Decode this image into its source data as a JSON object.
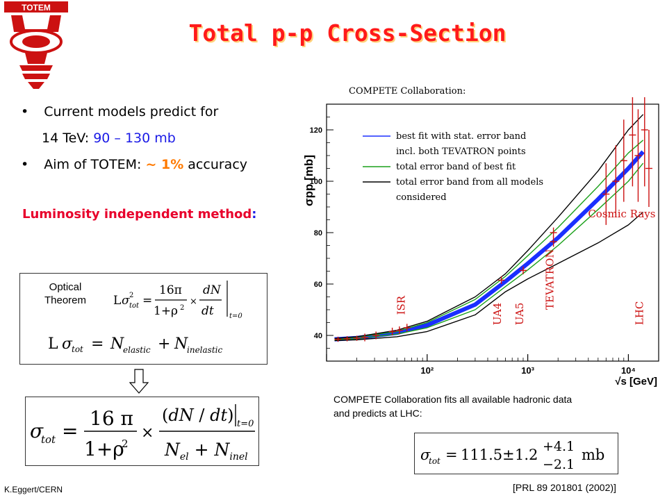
{
  "slide": {
    "title": "Total p-p Cross-Section",
    "bullet1": "Current models predict for",
    "bullet1b_prefix": "14 TeV: ",
    "bullet1b_value": "90 – 130 mb",
    "bullet2_prefix": "Aim of TOTEM: ",
    "bullet2_value": "~ 1%",
    "bullet2_suffix": " accuracy",
    "method": "Luminosity independent method",
    "method_colon": ":",
    "optical_label_1": "Optical",
    "optical_label_2": "Theorem",
    "compete_header": "COMPETE Collaboration",
    "compete_header_colon": ":",
    "compete_note_1": "COMPETE Collaboration fits all available hadronic data",
    "compete_note_2": "and predicts at LHC:",
    "footer_left": "K.Eggert/CERN",
    "footer_right": "[PRL 89 201801 (2002)]",
    "logo_text": "TOTEM",
    "result_value": "111.5",
    "result_stat": "1.2",
    "result_up": "+4.1",
    "result_down": "−2.1",
    "result_unit": "mb"
  },
  "chart_data": {
    "type": "line",
    "xlabel": "√s [GeV]",
    "ylabel": "σpp [mb]",
    "xscale": "log",
    "xlim": [
      10,
      20000
    ],
    "ylim": [
      30,
      130
    ],
    "x_ticks": [
      100,
      1000,
      10000
    ],
    "x_tick_labels": [
      "10²",
      "10³",
      "10⁴"
    ],
    "y_ticks": [
      40,
      60,
      80,
      100,
      120
    ],
    "legend_position": "top-left",
    "legend": [
      {
        "label": "best fit with stat. error band",
        "color": "#1a2fff"
      },
      {
        "label": "incl. both TEVATRON points",
        "color": "#1a2fff"
      },
      {
        "label": "total error band of best fit",
        "color": "#1aa01a"
      },
      {
        "label": "total error band from all models",
        "color": "#000000"
      },
      {
        "label": "considered",
        "color": "#000000"
      }
    ],
    "series": [
      {
        "name": "best fit with stat. error band",
        "color": "#1a2fff",
        "x": [
          12,
          20,
          50,
          100,
          300,
          600,
          1000,
          2000,
          5000,
          10000,
          14000
        ],
        "y": [
          38.5,
          39.0,
          41.0,
          44.0,
          52.0,
          61.0,
          68.0,
          78.0,
          93.0,
          105.0,
          111.5
        ]
      },
      {
        "name": "total error band of best fit",
        "color": "#1aa01a",
        "x": [
          12,
          20,
          50,
          100,
          300,
          600,
          1000,
          2000,
          5000,
          10000,
          14000
        ],
        "y": [
          38.7,
          39.3,
          41.5,
          45.0,
          54.0,
          63.0,
          71.0,
          82.0,
          98.0,
          111.0,
          116.0
        ]
      },
      {
        "name": "total error band of best fit",
        "color": "#1aa01a",
        "x": [
          12,
          20,
          50,
          100,
          300,
          600,
          1000,
          2000,
          5000,
          10000,
          14000
        ],
        "y": [
          38.3,
          38.7,
          40.5,
          43.0,
          50.0,
          59.0,
          65.5,
          75.0,
          89.0,
          100.0,
          107.0
        ]
      },
      {
        "name": "total error band from all models",
        "color": "#000000",
        "x": [
          12,
          20,
          50,
          100,
          300,
          600,
          1000,
          2000,
          5000,
          10000,
          14000
        ],
        "y": [
          38.8,
          39.5,
          42.0,
          45.5,
          55.0,
          64.0,
          73.0,
          86.0,
          104.0,
          120.0,
          126.0
        ]
      },
      {
        "name": "total error band from all models",
        "color": "#000000",
        "x": [
          12,
          20,
          50,
          100,
          300,
          600,
          1000,
          2000,
          5000,
          10000,
          14000
        ],
        "y": [
          38.0,
          38.3,
          39.5,
          41.5,
          48.0,
          57.0,
          62.0,
          68.0,
          76.0,
          83.0,
          88.0
        ]
      }
    ],
    "annotations": [
      {
        "text": "ISR",
        "x": 60,
        "y": 48,
        "color": "#cc1111"
      },
      {
        "text": "UA4",
        "x": 540,
        "y": 44,
        "color": "#cc1111"
      },
      {
        "text": "UA5",
        "x": 900,
        "y": 44,
        "color": "#cc1111"
      },
      {
        "text": "TEVATRON",
        "x": 1800,
        "y": 50,
        "color": "#cc1111"
      },
      {
        "text": "LHC",
        "x": 14000,
        "y": 44,
        "color": "#cc1111"
      },
      {
        "text": "Cosmic Rays",
        "x": 7500,
        "y": 86,
        "color": "#cc1111"
      }
    ],
    "data_points": [
      {
        "x": 13,
        "y": 38.5,
        "err": 1.0
      },
      {
        "x": 16,
        "y": 38.7,
        "err": 1.0
      },
      {
        "x": 20,
        "y": 38.9,
        "err": 1.0
      },
      {
        "x": 24,
        "y": 39.2,
        "err": 1.5
      },
      {
        "x": 31,
        "y": 40.0,
        "err": 1.5
      },
      {
        "x": 45,
        "y": 41.5,
        "err": 1.5
      },
      {
        "x": 53,
        "y": 42.0,
        "err": 1.5
      },
      {
        "x": 63,
        "y": 43.0,
        "err": 1.5
      },
      {
        "x": 546,
        "y": 61.5,
        "err": 1.5
      },
      {
        "x": 900,
        "y": 65.3,
        "err": 1.5
      },
      {
        "x": 1800,
        "y": 76.5,
        "err": 2.0
      },
      {
        "x": 1800,
        "y": 80.0,
        "err": 2.0
      },
      {
        "x": 6000,
        "y": 95,
        "err": 12
      },
      {
        "x": 7500,
        "y": 100,
        "err": 14
      },
      {
        "x": 9000,
        "y": 108,
        "err": 16
      },
      {
        "x": 11000,
        "y": 118,
        "err": 20
      },
      {
        "x": 12500,
        "y": 110,
        "err": 18
      },
      {
        "x": 14500,
        "y": 120,
        "err": 22
      },
      {
        "x": 16000,
        "y": 105,
        "err": 15
      }
    ]
  }
}
